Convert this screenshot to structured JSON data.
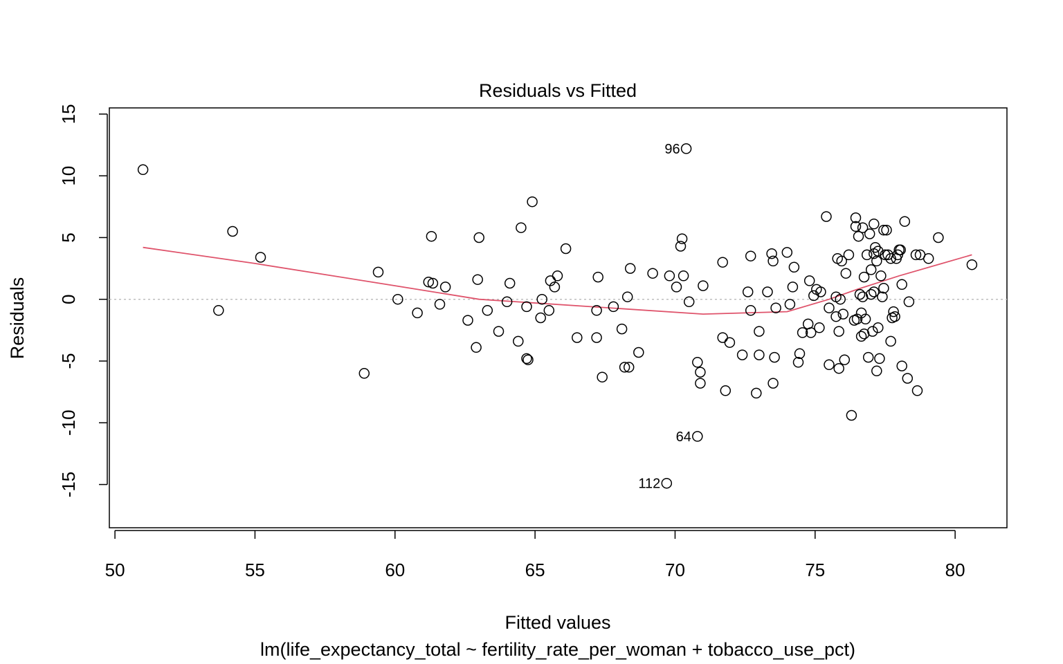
{
  "chart_data": {
    "type": "scatter",
    "title": "Residuals vs Fitted",
    "xlabel": "Fitted values",
    "ylabel": "Residuals",
    "subtitle": "lm(life_expectancy_total ~ fertility_rate_per_woman + tobacco_use_pct)",
    "xlim": [
      49.8,
      81.85
    ],
    "ylim": [
      -18.5,
      15.5
    ],
    "xticks": [
      "50",
      "55",
      "60",
      "65",
      "70",
      "75",
      "80"
    ],
    "yticks": [
      "-15",
      "-10",
      "-5",
      "0",
      "5",
      "10",
      "15"
    ],
    "grid": false,
    "reference_line_y": 0,
    "colors": {
      "points": "#000000",
      "smooth": "#DF536B",
      "reference": "#BEBEBE"
    },
    "points": [
      [
        51.0,
        10.5
      ],
      [
        53.7,
        -0.9
      ],
      [
        54.2,
        5.5
      ],
      [
        55.2,
        3.4
      ],
      [
        58.9,
        -6.0
      ],
      [
        59.4,
        2.2
      ],
      [
        60.1,
        0.0
      ],
      [
        60.8,
        -1.1
      ],
      [
        61.2,
        1.4
      ],
      [
        61.3,
        5.1
      ],
      [
        61.35,
        1.3
      ],
      [
        61.6,
        -0.4
      ],
      [
        61.8,
        1.0
      ],
      [
        62.6,
        -1.7
      ],
      [
        62.9,
        -3.9
      ],
      [
        62.95,
        1.6
      ],
      [
        63.0,
        5.0
      ],
      [
        63.3,
        -0.9
      ],
      [
        63.7,
        -2.6
      ],
      [
        64.0,
        -0.2
      ],
      [
        64.1,
        1.3
      ],
      [
        64.4,
        -3.4
      ],
      [
        64.5,
        5.8
      ],
      [
        64.7,
        -0.6
      ],
      [
        64.7,
        -4.8
      ],
      [
        64.75,
        -4.9
      ],
      [
        64.9,
        7.9
      ],
      [
        65.2,
        -1.5
      ],
      [
        65.25,
        0.0
      ],
      [
        65.5,
        -0.9
      ],
      [
        65.55,
        1.5
      ],
      [
        65.7,
        1.0
      ],
      [
        65.8,
        1.9
      ],
      [
        66.1,
        4.1
      ],
      [
        66.5,
        -3.1
      ],
      [
        67.2,
        -0.9
      ],
      [
        67.2,
        -3.1
      ],
      [
        67.25,
        1.8
      ],
      [
        67.4,
        -6.3
      ],
      [
        67.8,
        -0.6
      ],
      [
        68.1,
        -2.4
      ],
      [
        68.2,
        -5.5
      ],
      [
        68.3,
        0.2
      ],
      [
        68.35,
        -5.5
      ],
      [
        68.4,
        2.5
      ],
      [
        68.7,
        -4.3
      ],
      [
        69.2,
        2.1
      ],
      [
        69.7,
        -14.9
      ],
      [
        69.8,
        1.9
      ],
      [
        70.05,
        1.0
      ],
      [
        70.2,
        4.3
      ],
      [
        70.25,
        4.9
      ],
      [
        70.3,
        1.9
      ],
      [
        70.4,
        12.2
      ],
      [
        70.5,
        -0.2
      ],
      [
        70.8,
        -11.1
      ],
      [
        70.8,
        -5.1
      ],
      [
        70.9,
        -5.9
      ],
      [
        70.9,
        -6.8
      ],
      [
        71.0,
        1.1
      ],
      [
        71.7,
        3.0
      ],
      [
        71.7,
        -3.1
      ],
      [
        71.8,
        -7.4
      ],
      [
        71.95,
        -3.5
      ],
      [
        72.4,
        -4.5
      ],
      [
        72.6,
        0.6
      ],
      [
        72.7,
        3.5
      ],
      [
        72.7,
        -0.9
      ],
      [
        72.9,
        -7.6
      ],
      [
        73.0,
        -2.6
      ],
      [
        73.0,
        -4.5
      ],
      [
        73.3,
        0.6
      ],
      [
        73.45,
        3.7
      ],
      [
        73.5,
        3.1
      ],
      [
        73.55,
        -4.7
      ],
      [
        73.6,
        -0.7
      ],
      [
        73.5,
        -6.8
      ],
      [
        74.0,
        3.8
      ],
      [
        74.1,
        -0.4
      ],
      [
        74.2,
        1.0
      ],
      [
        74.25,
        2.6
      ],
      [
        74.4,
        -5.1
      ],
      [
        74.45,
        -4.4
      ],
      [
        74.55,
        -2.7
      ],
      [
        74.75,
        -2.0
      ],
      [
        74.8,
        1.5
      ],
      [
        74.85,
        -2.7
      ],
      [
        74.95,
        0.3
      ],
      [
        75.05,
        0.8
      ],
      [
        75.15,
        -2.3
      ],
      [
        75.2,
        0.6
      ],
      [
        75.4,
        6.7
      ],
      [
        75.5,
        -5.3
      ],
      [
        75.5,
        -0.7
      ],
      [
        75.75,
        0.2
      ],
      [
        75.75,
        -1.4
      ],
      [
        75.8,
        3.3
      ],
      [
        75.85,
        -2.6
      ],
      [
        75.85,
        -5.6
      ],
      [
        75.9,
        0.0
      ],
      [
        75.95,
        3.1
      ],
      [
        76.0,
        -1.2
      ],
      [
        76.05,
        -4.9
      ],
      [
        76.1,
        2.1
      ],
      [
        76.2,
        3.6
      ],
      [
        76.3,
        -9.4
      ],
      [
        76.4,
        -1.7
      ],
      [
        76.45,
        6.6
      ],
      [
        76.45,
        5.9
      ],
      [
        76.5,
        -1.6
      ],
      [
        76.55,
        5.1
      ],
      [
        76.6,
        0.4
      ],
      [
        76.65,
        -3.0
      ],
      [
        76.7,
        0.2
      ],
      [
        76.65,
        -1.1
      ],
      [
        76.7,
        5.8
      ],
      [
        76.75,
        -2.8
      ],
      [
        76.75,
        1.8
      ],
      [
        76.8,
        -1.6
      ],
      [
        76.85,
        3.6
      ],
      [
        76.9,
        -4.7
      ],
      [
        76.95,
        5.3
      ],
      [
        77.0,
        0.4
      ],
      [
        77.0,
        2.4
      ],
      [
        77.05,
        -2.6
      ],
      [
        77.1,
        0.6
      ],
      [
        77.1,
        3.7
      ],
      [
        77.1,
        6.1
      ],
      [
        77.15,
        4.2
      ],
      [
        77.2,
        3.1
      ],
      [
        77.2,
        -5.8
      ],
      [
        77.25,
        3.9
      ],
      [
        77.25,
        -2.3
      ],
      [
        77.3,
        -4.8
      ],
      [
        77.35,
        1.9
      ],
      [
        77.4,
        0.2
      ],
      [
        77.45,
        5.6
      ],
      [
        77.45,
        0.9
      ],
      [
        77.5,
        3.6
      ],
      [
        77.55,
        5.6
      ],
      [
        77.6,
        3.6
      ],
      [
        77.7,
        3.3
      ],
      [
        77.75,
        -1.5
      ],
      [
        77.8,
        -1.0
      ],
      [
        77.85,
        -1.4
      ],
      [
        77.9,
        3.3
      ],
      [
        77.95,
        3.6
      ],
      [
        77.7,
        -3.4
      ],
      [
        78.0,
        4.0
      ],
      [
        78.05,
        4.0
      ],
      [
        78.1,
        -5.4
      ],
      [
        78.1,
        1.2
      ],
      [
        78.2,
        6.3
      ],
      [
        78.3,
        -6.4
      ],
      [
        78.35,
        -0.2
      ],
      [
        78.6,
        3.6
      ],
      [
        78.65,
        -7.4
      ],
      [
        78.75,
        3.6
      ],
      [
        79.05,
        3.3
      ],
      [
        79.4,
        5.0
      ],
      [
        80.6,
        2.8
      ]
    ],
    "smooth": [
      [
        51.0,
        4.2
      ],
      [
        55.0,
        2.9
      ],
      [
        60.0,
        1.1
      ],
      [
        63.0,
        0.0
      ],
      [
        67.0,
        -0.6
      ],
      [
        71.0,
        -1.2
      ],
      [
        74.0,
        -1.0
      ],
      [
        75.5,
        0.0
      ],
      [
        76.5,
        0.8
      ],
      [
        78.0,
        1.9
      ],
      [
        80.6,
        3.6
      ]
    ],
    "labeled_points": [
      {
        "text": "96",
        "x": 70.4,
        "y": 12.2
      },
      {
        "text": "64",
        "x": 70.8,
        "y": -11.1
      },
      {
        "text": "112",
        "x": 69.7,
        "y": -14.9
      }
    ]
  }
}
